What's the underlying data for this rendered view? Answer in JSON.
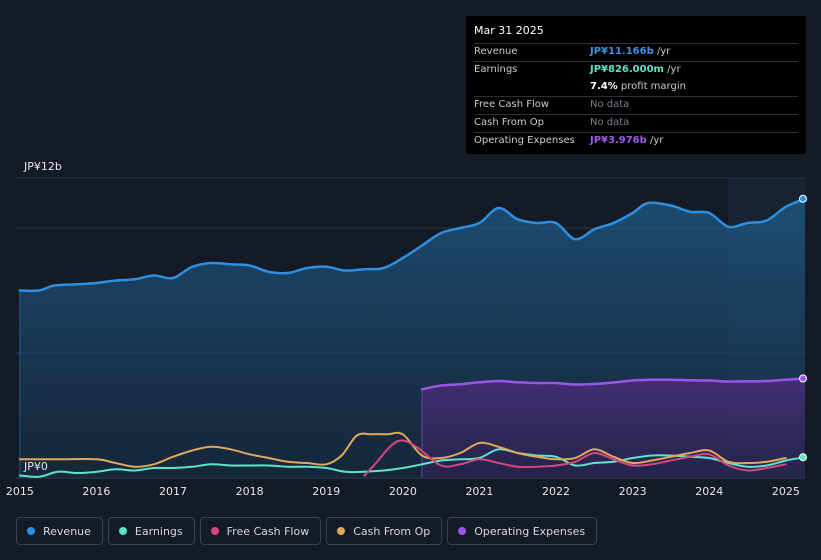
{
  "tooltip": {
    "date": "Mar 31 2025",
    "rows": {
      "revenue": {
        "label": "Revenue",
        "value": "JP¥11.166b",
        "unit": " /yr"
      },
      "earnings": {
        "label": "Earnings",
        "value": "JP¥826.000m",
        "unit": " /yr"
      },
      "margin": {
        "value": "7.4%",
        "unit": " profit margin"
      },
      "fcf": {
        "label": "Free Cash Flow",
        "value": "No data"
      },
      "cfo": {
        "label": "Cash From Op",
        "value": "No data"
      },
      "opex": {
        "label": "Operating Expenses",
        "value": "JP¥3.976b",
        "unit": " /yr"
      }
    }
  },
  "legend": {
    "revenue": "Revenue",
    "earnings": "Earnings",
    "fcf": "Free Cash Flow",
    "cfo": "Cash From Op",
    "opex": "Operating Expenses"
  },
  "colors": {
    "revenue": "#2d8fe0",
    "earnings": "#5fe3cc",
    "fcf": "#d6467f",
    "cfo": "#e0a85a",
    "opex": "#9b55e8",
    "tt_revenue": "#3a95e6",
    "tt_earnings": "#5fe3cc",
    "tt_opex": "#a05ae8",
    "tt_muted": "#7a808a"
  },
  "chart_data": {
    "type": "area",
    "title": "",
    "y_axis": {
      "top_label": "JP¥12b",
      "bottom_label": "JP¥0",
      "ylim": [
        0,
        12
      ]
    },
    "x_ticks": [
      "2015",
      "2016",
      "2017",
      "2018",
      "2019",
      "2020",
      "2021",
      "2022",
      "2023",
      "2024",
      "2025"
    ],
    "xlim": [
      2014.95,
      2025.25
    ],
    "highlight_from": 2024.25,
    "series": [
      {
        "key": "revenue",
        "name": "Revenue",
        "fill": true,
        "x": [
          2015.0,
          2015.25,
          2015.45,
          2015.75,
          2016.0,
          2016.25,
          2016.5,
          2016.75,
          2017.0,
          2017.25,
          2017.5,
          2017.75,
          2018.0,
          2018.25,
          2018.5,
          2018.75,
          2019.0,
          2019.25,
          2019.5,
          2019.75,
          2020.0,
          2020.25,
          2020.5,
          2020.75,
          2021.0,
          2021.25,
          2021.5,
          2021.75,
          2022.0,
          2022.25,
          2022.5,
          2022.75,
          2023.0,
          2023.2,
          2023.5,
          2023.75,
          2024.0,
          2024.25,
          2024.5,
          2024.75,
          2025.0,
          2025.25
        ],
        "values": [
          7.5,
          7.5,
          7.7,
          7.75,
          7.8,
          7.9,
          7.95,
          8.1,
          8.0,
          8.45,
          8.6,
          8.55,
          8.5,
          8.25,
          8.2,
          8.4,
          8.45,
          8.3,
          8.35,
          8.4,
          8.8,
          9.3,
          9.8,
          10.0,
          10.2,
          10.8,
          10.35,
          10.2,
          10.2,
          9.55,
          9.95,
          10.2,
          10.6,
          11.0,
          10.9,
          10.65,
          10.6,
          10.05,
          10.2,
          10.3,
          10.85,
          11.17
        ]
      },
      {
        "key": "opex",
        "name": "Operating Expenses",
        "fill": true,
        "x": [
          2020.25,
          2020.5,
          2020.75,
          2021.0,
          2021.25,
          2021.5,
          2021.75,
          2022.0,
          2022.25,
          2022.5,
          2022.75,
          2023.0,
          2023.25,
          2023.5,
          2023.75,
          2024.0,
          2024.25,
          2024.5,
          2024.75,
          2025.0,
          2025.25
        ],
        "values": [
          3.55,
          3.7,
          3.75,
          3.83,
          3.88,
          3.83,
          3.8,
          3.8,
          3.74,
          3.76,
          3.82,
          3.9,
          3.93,
          3.93,
          3.91,
          3.9,
          3.86,
          3.87,
          3.88,
          3.93,
          3.98
        ]
      },
      {
        "key": "earnings",
        "name": "Earnings",
        "fill": false,
        "x": [
          2015.0,
          2015.25,
          2015.5,
          2015.75,
          2016.0,
          2016.25,
          2016.5,
          2016.75,
          2017.0,
          2017.25,
          2017.5,
          2017.75,
          2018.0,
          2018.25,
          2018.5,
          2018.75,
          2019.0,
          2019.25,
          2019.5,
          2019.75,
          2020.0,
          2020.25,
          2020.5,
          2020.75,
          2021.0,
          2021.25,
          2021.5,
          2021.75,
          2022.0,
          2022.25,
          2022.5,
          2022.75,
          2023.0,
          2023.25,
          2023.5,
          2023.75,
          2024.0,
          2024.25,
          2024.5,
          2024.75,
          2025.0,
          2025.25
        ],
        "values": [
          0.1,
          0.05,
          0.25,
          0.2,
          0.25,
          0.35,
          0.3,
          0.4,
          0.4,
          0.45,
          0.55,
          0.5,
          0.5,
          0.5,
          0.45,
          0.45,
          0.4,
          0.25,
          0.25,
          0.3,
          0.4,
          0.55,
          0.7,
          0.75,
          0.8,
          1.15,
          1.0,
          0.9,
          0.85,
          0.5,
          0.6,
          0.65,
          0.8,
          0.9,
          0.9,
          0.85,
          0.8,
          0.6,
          0.45,
          0.5,
          0.7,
          0.83
        ]
      },
      {
        "key": "cfo",
        "name": "Cash From Op",
        "fill": false,
        "x": [
          2015.0,
          2015.5,
          2016.0,
          2016.25,
          2016.5,
          2016.75,
          2017.0,
          2017.25,
          2017.5,
          2017.75,
          2018.0,
          2018.25,
          2018.5,
          2018.75,
          2019.0,
          2019.2,
          2019.4,
          2019.6,
          2019.8,
          2020.0,
          2020.25,
          2020.5,
          2020.75,
          2021.0,
          2021.25,
          2021.5,
          2021.75,
          2022.0,
          2022.25,
          2022.5,
          2022.75,
          2023.0,
          2023.25,
          2023.5,
          2023.75,
          2024.0,
          2024.25,
          2024.5,
          2024.75,
          2025.0
        ],
        "values": [
          0.75,
          0.75,
          0.75,
          0.6,
          0.45,
          0.55,
          0.85,
          1.1,
          1.25,
          1.15,
          0.95,
          0.8,
          0.65,
          0.6,
          0.55,
          0.9,
          1.7,
          1.75,
          1.75,
          1.75,
          0.9,
          0.8,
          1.0,
          1.4,
          1.25,
          1.0,
          0.85,
          0.75,
          0.8,
          1.15,
          0.85,
          0.6,
          0.7,
          0.85,
          1.0,
          1.1,
          0.65,
          0.6,
          0.65,
          0.8
        ]
      },
      {
        "key": "fcf",
        "name": "Free Cash Flow",
        "fill": false,
        "x": [
          2019.5,
          2019.65,
          2019.85,
          2020.0,
          2020.2,
          2020.5,
          2020.75,
          2021.0,
          2021.25,
          2021.5,
          2021.75,
          2022.0,
          2022.25,
          2022.5,
          2022.75,
          2023.0,
          2023.25,
          2023.5,
          2023.75,
          2024.0,
          2024.25,
          2024.5,
          2024.75,
          2025.0
        ],
        "values": [
          0.1,
          0.6,
          1.3,
          1.5,
          1.2,
          0.5,
          0.55,
          0.75,
          0.6,
          0.45,
          0.45,
          0.5,
          0.65,
          1.0,
          0.75,
          0.5,
          0.55,
          0.7,
          0.85,
          0.95,
          0.5,
          0.3,
          0.4,
          0.55
        ]
      }
    ]
  }
}
